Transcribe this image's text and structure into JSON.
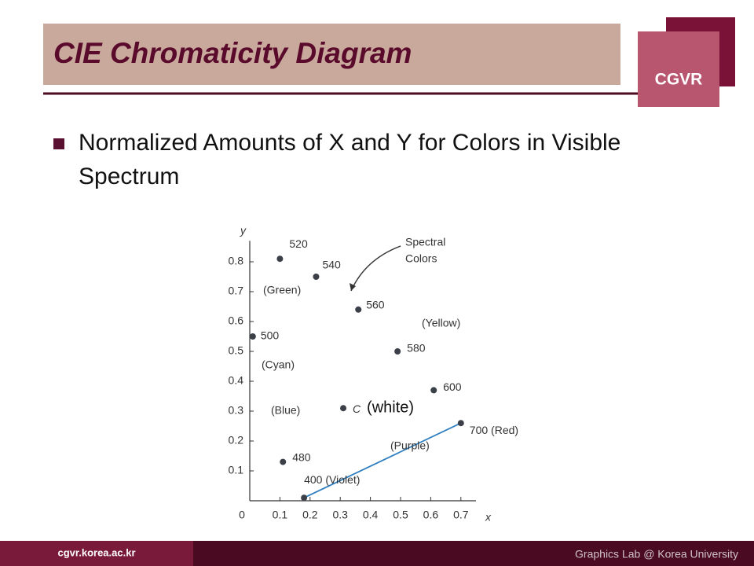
{
  "header": {
    "title": "CIE Chromaticity Diagram",
    "logo": "CGVR"
  },
  "bullets": [
    "Normalized Amounts of X and Y for Colors in Visible Spectrum"
  ],
  "chart_data": {
    "type": "line",
    "x_label": "x",
    "y_label": "y",
    "x": [
      0.18,
      0.11,
      0.01,
      0.1,
      0.22,
      0.36,
      0.49,
      0.61,
      0.7
    ],
    "values": [
      0.01,
      0.13,
      0.55,
      0.81,
      0.75,
      0.64,
      0.5,
      0.37,
      0.26
    ],
    "point_labels": [
      "400 (Violet)",
      "480",
      "500",
      "520",
      "540",
      "560",
      "580",
      "600",
      "700 (Red)"
    ],
    "color": "#2f7fc0",
    "region_labels": [
      "(Green)",
      "(Yellow)",
      "(Cyan)",
      "(Blue)",
      "(Purple)"
    ],
    "arrow_label": [
      "Spectral",
      "Colors"
    ],
    "white_point": {
      "x": 0.31,
      "y": 0.31,
      "label": "C",
      "note": "(white)"
    },
    "xlim": [
      0,
      0.75
    ],
    "ylim": [
      0,
      0.87
    ],
    "xticks": [
      0,
      0.1,
      0.2,
      0.3,
      0.4,
      0.5,
      0.6,
      0.7
    ],
    "yticks": [
      0.1,
      0.2,
      0.3,
      0.4,
      0.5,
      0.6,
      0.7,
      0.8
    ]
  },
  "footer": {
    "left": "cgvr.korea.ac.kr",
    "right": "Graphics Lab @ Korea University"
  }
}
